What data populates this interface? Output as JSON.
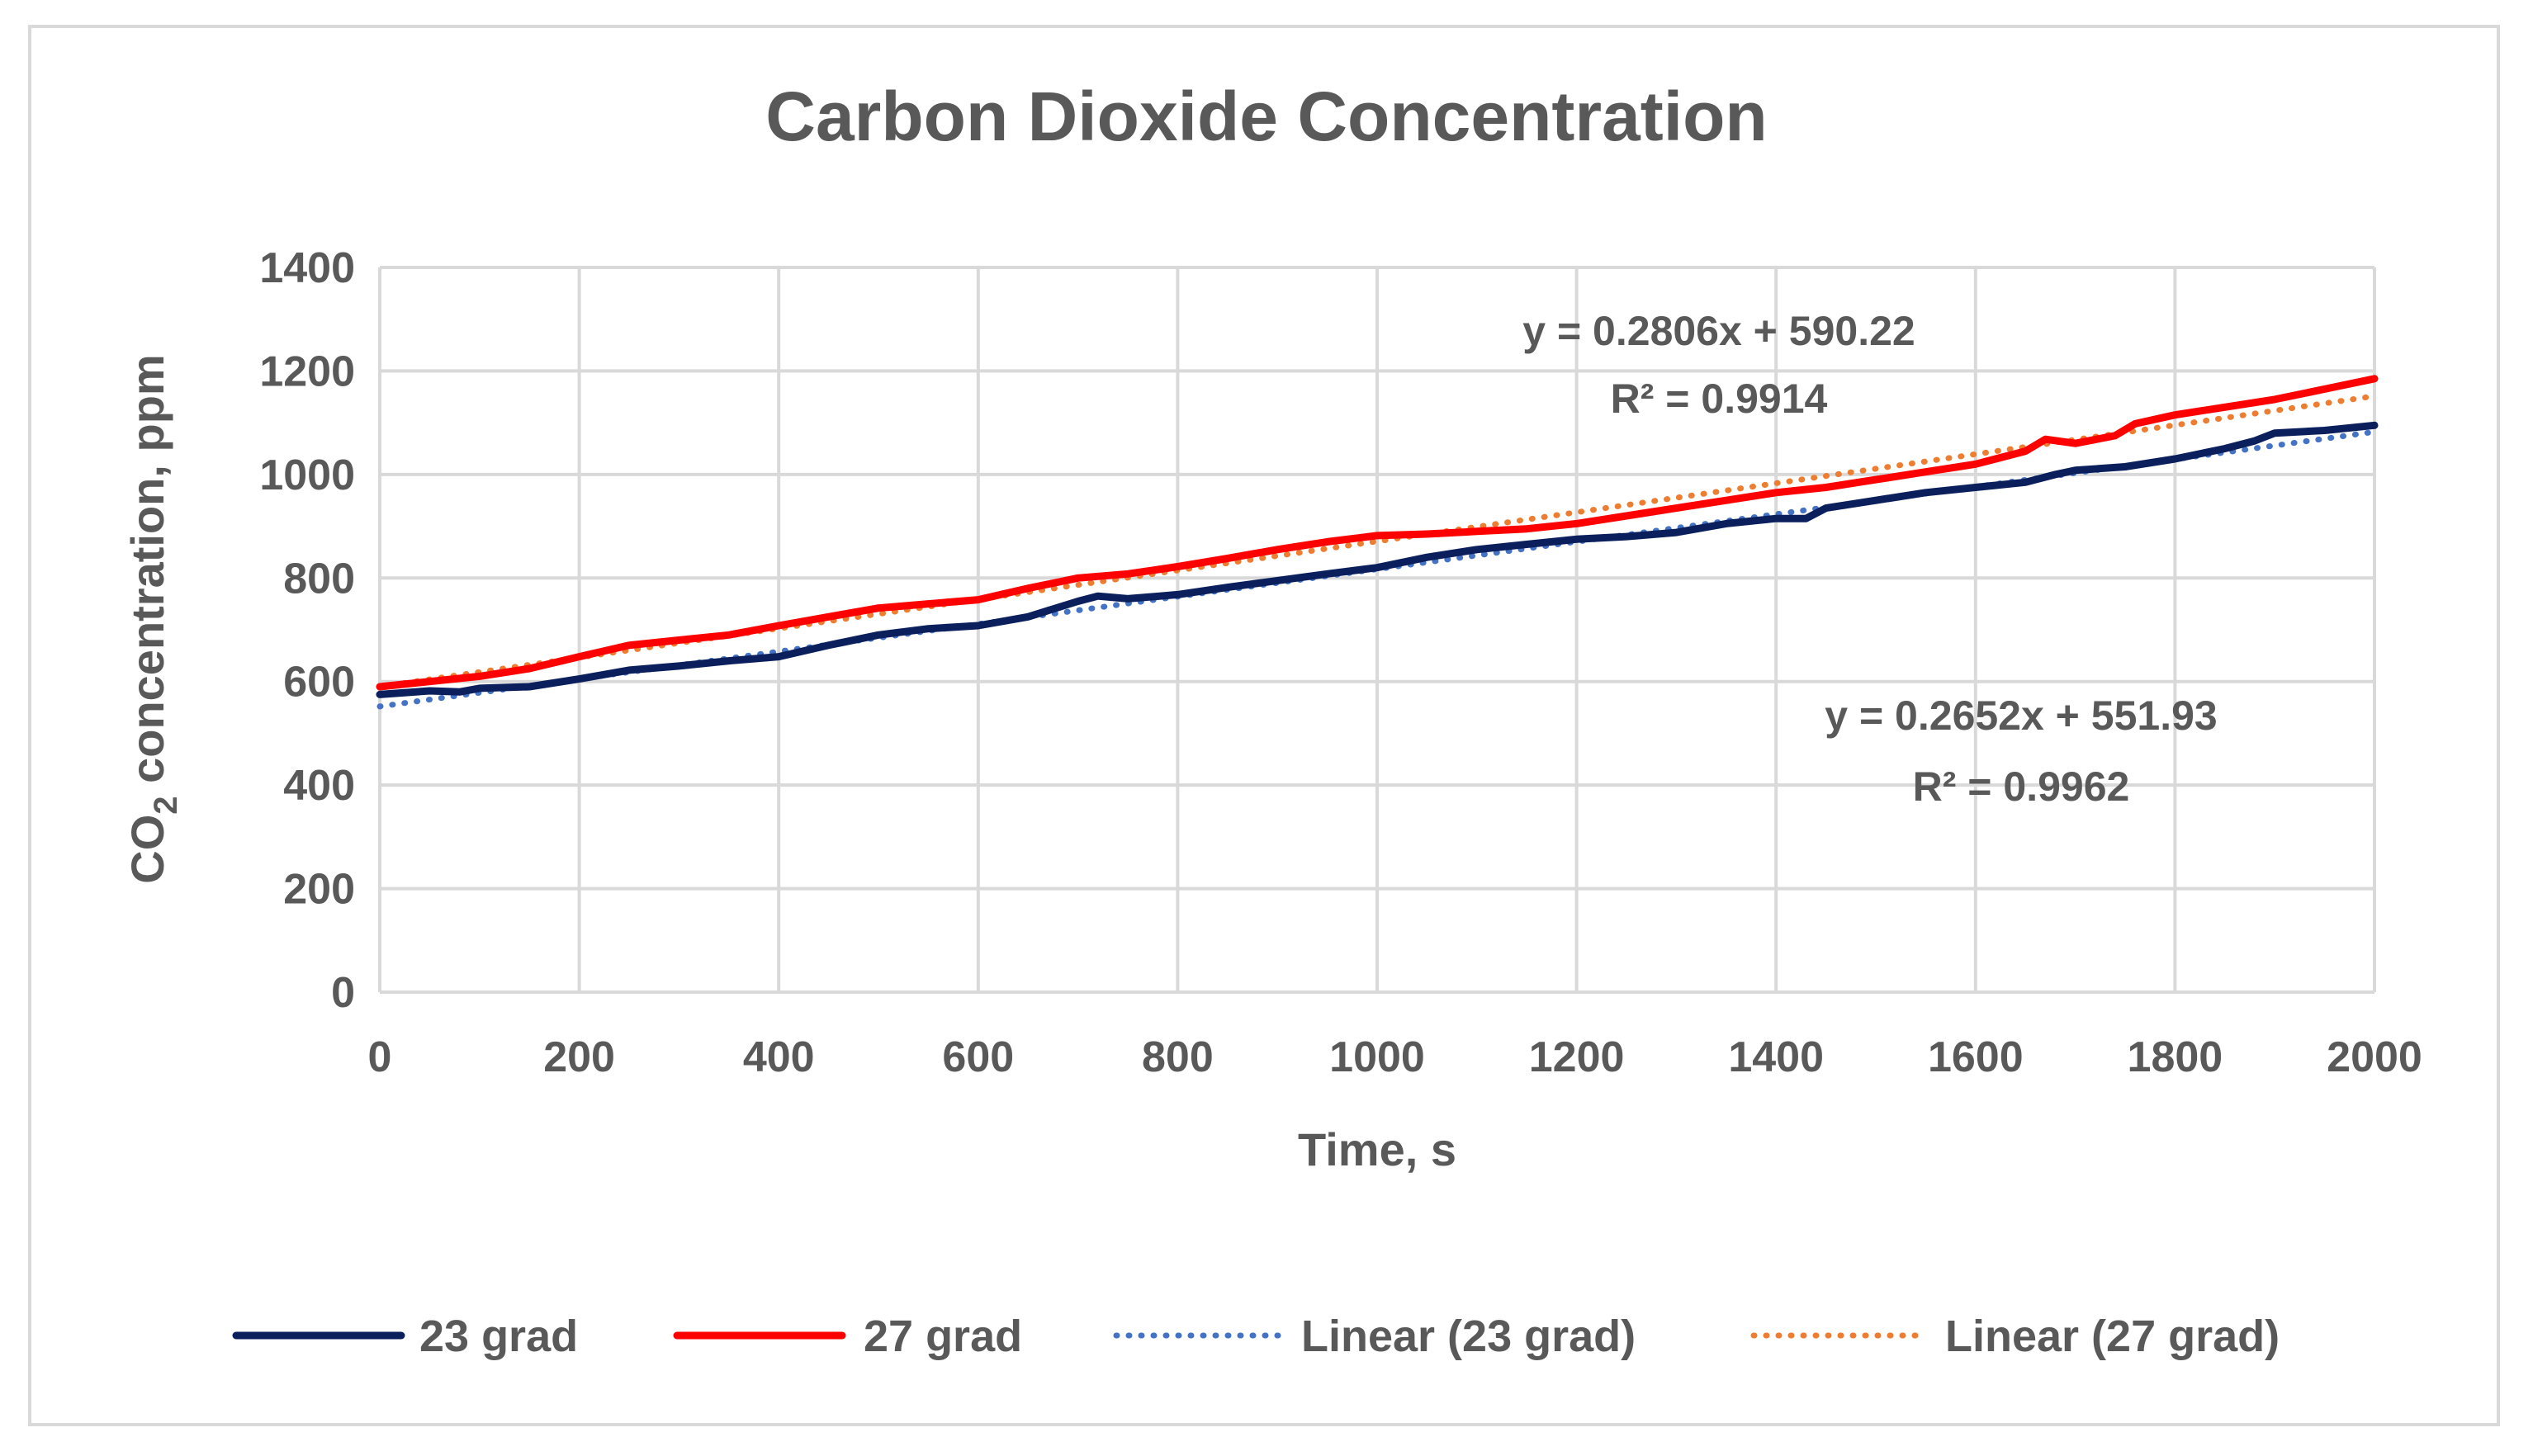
{
  "chart_data": {
    "type": "line",
    "title": "Carbon Dioxide Concentration",
    "xlabel": "Time, s",
    "ylabel": {
      "prefix": "CO",
      "subscript": "2",
      "suffix": " concentration, ppm"
    },
    "xlim": [
      0,
      2000
    ],
    "ylim": [
      0,
      1400
    ],
    "x_ticks": [
      0,
      200,
      400,
      600,
      800,
      1000,
      1200,
      1400,
      1600,
      1800,
      2000
    ],
    "y_ticks": [
      0,
      200,
      400,
      600,
      800,
      1000,
      1200,
      1400
    ],
    "grid": true,
    "legend_position": "bottom",
    "series": [
      {
        "name": "23 grad",
        "color": "#0b1f5c",
        "style": "solid",
        "x": [
          0,
          50,
          80,
          100,
          150,
          200,
          250,
          300,
          350,
          400,
          450,
          500,
          550,
          600,
          650,
          700,
          720,
          750,
          800,
          850,
          900,
          950,
          1000,
          1050,
          1100,
          1150,
          1200,
          1250,
          1300,
          1350,
          1400,
          1430,
          1450,
          1500,
          1550,
          1600,
          1650,
          1680,
          1700,
          1750,
          1800,
          1850,
          1880,
          1900,
          1950,
          2000
        ],
        "values": [
          575,
          582,
          580,
          587,
          590,
          605,
          622,
          630,
          640,
          648,
          670,
          690,
          702,
          708,
          725,
          755,
          765,
          760,
          768,
          782,
          795,
          808,
          820,
          840,
          855,
          865,
          875,
          880,
          888,
          905,
          915,
          915,
          935,
          950,
          965,
          975,
          985,
          1000,
          1008,
          1015,
          1030,
          1050,
          1065,
          1080,
          1085,
          1095
        ]
      },
      {
        "name": "27 grad",
        "color": "#ff0000",
        "style": "solid",
        "x": [
          0,
          50,
          100,
          150,
          200,
          250,
          300,
          350,
          400,
          450,
          500,
          550,
          600,
          650,
          700,
          750,
          800,
          850,
          900,
          950,
          1000,
          1050,
          1100,
          1150,
          1200,
          1250,
          1300,
          1350,
          1400,
          1450,
          1500,
          1550,
          1600,
          1650,
          1670,
          1700,
          1740,
          1760,
          1800,
          1850,
          1900,
          1950,
          2000
        ],
        "values": [
          590,
          600,
          610,
          625,
          648,
          670,
          680,
          690,
          708,
          725,
          742,
          750,
          758,
          780,
          800,
          808,
          822,
          838,
          855,
          870,
          882,
          885,
          890,
          895,
          905,
          920,
          935,
          950,
          965,
          975,
          990,
          1005,
          1020,
          1045,
          1068,
          1060,
          1075,
          1098,
          1115,
          1130,
          1145,
          1165,
          1185
        ]
      },
      {
        "name": "Linear (23 grad)",
        "color": "#4472c4",
        "style": "dotted",
        "x": [
          0,
          2000
        ],
        "values": [
          551.93,
          1082.33
        ]
      },
      {
        "name": "Linear (27 grad)",
        "color": "#ed7d31",
        "style": "dotted",
        "x": [
          0,
          2000
        ],
        "values": [
          590.22,
          1151.42
        ]
      }
    ],
    "annotations": [
      {
        "id": "fit27",
        "line1": "y = 0.2806x + 590.22",
        "line2": "R² = 0.9914"
      },
      {
        "id": "fit23",
        "line1": "y = 0.2652x + 551.93",
        "line2": "R² = 0.9962"
      }
    ]
  }
}
